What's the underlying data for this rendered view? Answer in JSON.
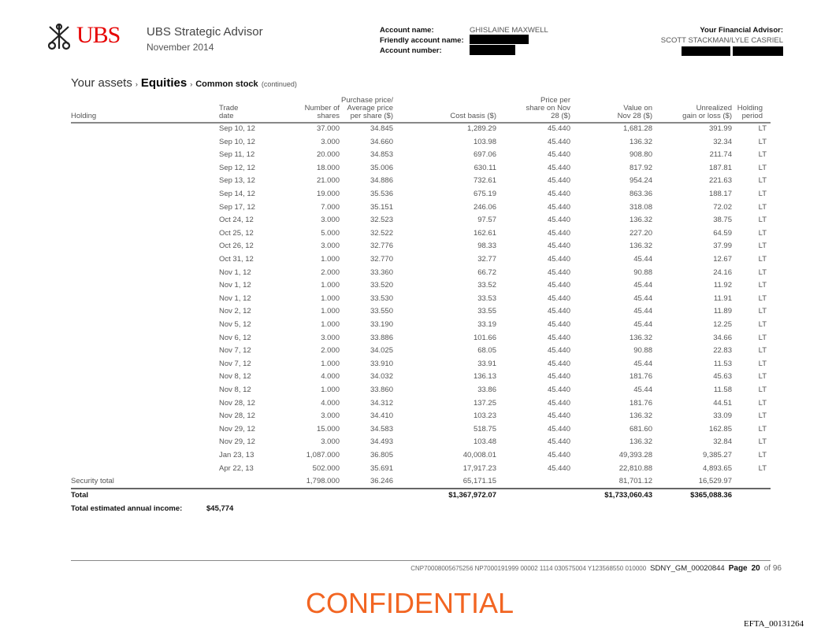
{
  "header": {
    "logo": "UBS",
    "app_title": "UBS Strategic Advisor",
    "period": "November 2014",
    "account_name_label": "Account name:",
    "account_name": "GHISLAINE MAXWELL",
    "friendly_label": "Friendly account name:",
    "account_number_label": "Account number:",
    "advisor_label": "Your Financial Advisor:",
    "advisor_names": "SCOTT STACKMAN/LYLE CASRIEL"
  },
  "breadcrumb": {
    "l1": "Your assets",
    "l2": "Equities",
    "l3": "Common stock",
    "note": "(continued)"
  },
  "table": {
    "columns": [
      "Holding",
      "Trade date",
      "Number of shares",
      "Purchase price/ Average price per share ($)",
      "Cost basis ($)",
      "Price per share on Nov 28 ($)",
      "Value on Nov 28 ($)",
      "Unrealized gain or loss ($)",
      "Holding period"
    ],
    "rows": [
      [
        "Sep 10, 12",
        "37.000",
        "34.845",
        "1,289.29",
        "45.440",
        "1,681.28",
        "391.99",
        "LT"
      ],
      [
        "Sep 10, 12",
        "3.000",
        "34.660",
        "103.98",
        "45.440",
        "136.32",
        "32.34",
        "LT"
      ],
      [
        "Sep 11, 12",
        "20.000",
        "34.853",
        "697.06",
        "45.440",
        "908.80",
        "211.74",
        "LT"
      ],
      [
        "Sep 12, 12",
        "18.000",
        "35.006",
        "630.11",
        "45.440",
        "817.92",
        "187.81",
        "LT"
      ],
      [
        "Sep 13, 12",
        "21.000",
        "34.886",
        "732.61",
        "45.440",
        "954.24",
        "221.63",
        "LT"
      ],
      [
        "Sep 14, 12",
        "19.000",
        "35.536",
        "675.19",
        "45.440",
        "863.36",
        "188.17",
        "LT"
      ],
      [
        "Sep 17, 12",
        "7.000",
        "35.151",
        "246.06",
        "45.440",
        "318.08",
        "72.02",
        "LT"
      ],
      [
        "Oct 24, 12",
        "3.000",
        "32.523",
        "97.57",
        "45.440",
        "136.32",
        "38.75",
        "LT"
      ],
      [
        "Oct 25, 12",
        "5.000",
        "32.522",
        "162.61",
        "45.440",
        "227.20",
        "64.59",
        "LT"
      ],
      [
        "Oct 26, 12",
        "3.000",
        "32.776",
        "98.33",
        "45.440",
        "136.32",
        "37.99",
        "LT"
      ],
      [
        "Oct 31, 12",
        "1.000",
        "32.770",
        "32.77",
        "45.440",
        "45.44",
        "12.67",
        "LT"
      ],
      [
        "Nov 1, 12",
        "2.000",
        "33.360",
        "66.72",
        "45.440",
        "90.88",
        "24.16",
        "LT"
      ],
      [
        "Nov 1, 12",
        "1.000",
        "33.520",
        "33.52",
        "45.440",
        "45.44",
        "11.92",
        "LT"
      ],
      [
        "Nov 1, 12",
        "1.000",
        "33.530",
        "33.53",
        "45.440",
        "45.44",
        "11.91",
        "LT"
      ],
      [
        "Nov 2, 12",
        "1.000",
        "33.550",
        "33.55",
        "45.440",
        "45.44",
        "11.89",
        "LT"
      ],
      [
        "Nov 5, 12",
        "1.000",
        "33.190",
        "33.19",
        "45.440",
        "45.44",
        "12.25",
        "LT"
      ],
      [
        "Nov 6, 12",
        "3.000",
        "33.886",
        "101.66",
        "45.440",
        "136.32",
        "34.66",
        "LT"
      ],
      [
        "Nov 7, 12",
        "2.000",
        "34.025",
        "68.05",
        "45.440",
        "90.88",
        "22.83",
        "LT"
      ],
      [
        "Nov 7, 12",
        "1.000",
        "33.910",
        "33.91",
        "45.440",
        "45.44",
        "11.53",
        "LT"
      ],
      [
        "Nov 8, 12",
        "4.000",
        "34.032",
        "136.13",
        "45.440",
        "181.76",
        "45.63",
        "LT"
      ],
      [
        "Nov 8, 12",
        "1.000",
        "33.860",
        "33.86",
        "45.440",
        "45.44",
        "11.58",
        "LT"
      ],
      [
        "Nov 28, 12",
        "4.000",
        "34.312",
        "137.25",
        "45.440",
        "181.76",
        "44.51",
        "LT"
      ],
      [
        "Nov 28, 12",
        "3.000",
        "34.410",
        "103.23",
        "45.440",
        "136.32",
        "33.09",
        "LT"
      ],
      [
        "Nov 29, 12",
        "15.000",
        "34.583",
        "518.75",
        "45.440",
        "681.60",
        "162.85",
        "LT"
      ],
      [
        "Nov 29, 12",
        "3.000",
        "34.493",
        "103.48",
        "45.440",
        "136.32",
        "32.84",
        "LT"
      ],
      [
        "Jan 23, 13",
        "1,087.000",
        "36.805",
        "40,008.01",
        "45.440",
        "49,393.28",
        "9,385.27",
        "LT"
      ],
      [
        "Apr 22, 13",
        "502.000",
        "35.691",
        "17,917.23",
        "45.440",
        "22,810.88",
        "4,893.65",
        "LT"
      ]
    ],
    "security_total": {
      "label": "Security total",
      "shares": "1,798.000",
      "avg_price": "36.246",
      "cost": "65,171.15",
      "value": "81,701.12",
      "gain": "16,529.97"
    },
    "total": {
      "label": "Total",
      "cost": "$1,367,972.07",
      "value": "$1,733,060.43",
      "gain": "$365,088.36"
    },
    "income_label": "Total estimated annual income:",
    "income": "$45,774"
  },
  "footer": {
    "code": "CNP70008005675256 NP7000191999 00002 1114 030575004 Y123568550 010000",
    "bates": "SDNY_GM_00020844",
    "page_label": "Page",
    "page": "20",
    "of": "of 96"
  },
  "stamp": "CONFIDENTIAL",
  "efta": "EFTA_00131264",
  "colors": {
    "brand": "#e60000",
    "confidential": "#f26522"
  }
}
